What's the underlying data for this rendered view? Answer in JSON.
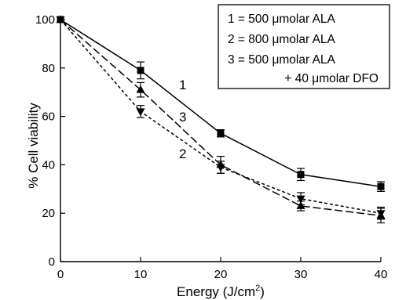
{
  "chart_data": {
    "type": "line",
    "xlabel": "Energy (J/cm",
    "xlabel_sup": "2",
    "xlabel_tail": ")",
    "ylabel": "% Cell viability",
    "xlim": [
      0,
      40
    ],
    "ylim": [
      0,
      100
    ],
    "x_ticks": [
      0,
      10,
      20,
      30,
      40
    ],
    "y_ticks": [
      0,
      20,
      40,
      60,
      80,
      100
    ],
    "x_tick_labels": [
      "0",
      "10",
      "20",
      "30",
      "40"
    ],
    "y_tick_labels": [
      "0",
      "20",
      "40",
      "60",
      "80",
      "100"
    ],
    "grid": false,
    "legend_position": "top-right",
    "legend": [
      "1 = 500 μmolar ALA",
      "2 = 800 μmolar ALA",
      "3 = 500 μmolar ALA",
      "+ 40 μmolar DFO"
    ],
    "series": [
      {
        "label": "1",
        "marker": "square",
        "line_style": "solid",
        "x": [
          0,
          10,
          20,
          30,
          40
        ],
        "y": [
          100,
          79,
          53,
          36,
          31
        ],
        "error": [
          0,
          3.5,
          1.5,
          2.5,
          2
        ]
      },
      {
        "label": "2",
        "marker": "triangle-down",
        "line_style": "short-dash",
        "x": [
          0,
          10,
          20,
          30,
          40
        ],
        "y": [
          100,
          62,
          39,
          26,
          20
        ],
        "error": [
          0,
          2.5,
          2.5,
          2.5,
          2.5
        ]
      },
      {
        "label": "3",
        "marker": "triangle-up",
        "line_style": "long-dash",
        "x": [
          0,
          10,
          20,
          30,
          40
        ],
        "y": [
          100,
          71,
          40,
          23,
          19
        ],
        "error": [
          0,
          3,
          3.5,
          2,
          3
        ]
      }
    ]
  }
}
